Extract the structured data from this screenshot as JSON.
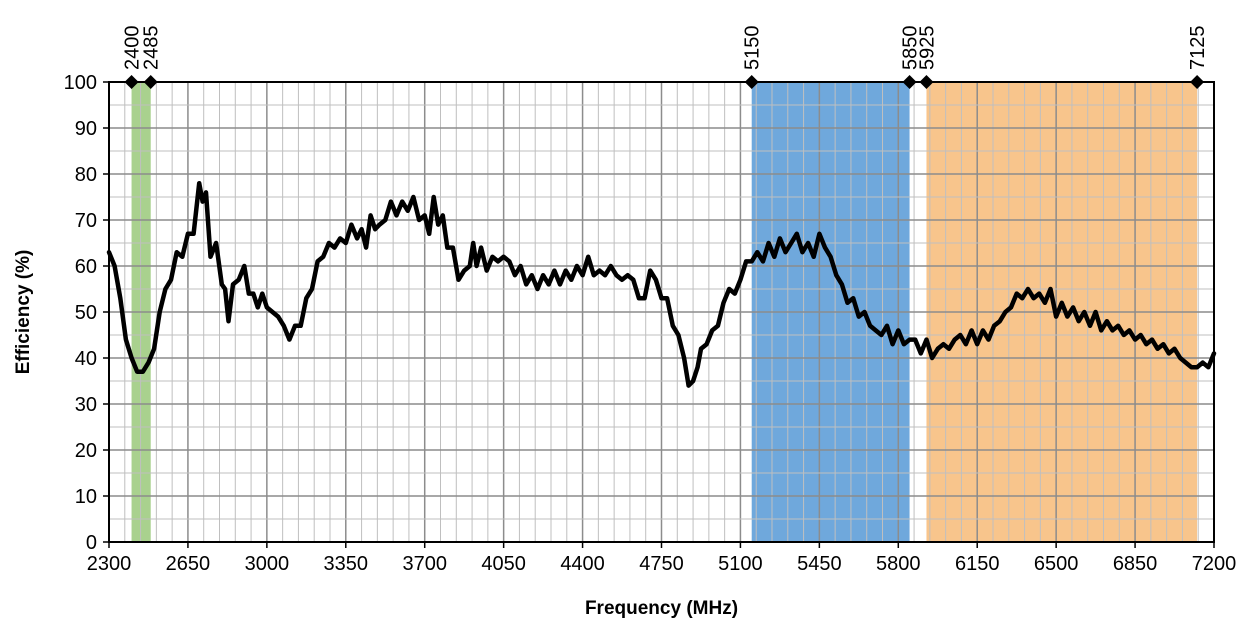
{
  "chart_data": {
    "type": "line",
    "title": "",
    "xlabel": "Frequency (MHz)",
    "ylabel": "Efficiency (%)",
    "xlim": [
      2300,
      7200
    ],
    "ylim": [
      0,
      100
    ],
    "x_ticks": [
      2300,
      2650,
      3000,
      3350,
      3700,
      4050,
      4400,
      4750,
      5100,
      5450,
      5800,
      6150,
      6500,
      6850,
      7200
    ],
    "y_ticks": [
      0,
      10,
      20,
      30,
      40,
      50,
      60,
      70,
      80,
      90,
      100
    ],
    "grid": true,
    "bands": [
      {
        "start": 2400,
        "end": 2485,
        "color": "#a9d18e"
      },
      {
        "start": 5150,
        "end": 5850,
        "color": "#6fa8dc"
      },
      {
        "start": 5925,
        "end": 7125,
        "color": "#f8c58c"
      }
    ],
    "band_markers": [
      {
        "x": 2400,
        "label": "2400"
      },
      {
        "x": 2485,
        "label": "2485"
      },
      {
        "x": 5150,
        "label": "5150"
      },
      {
        "x": 5850,
        "label": "5850"
      },
      {
        "x": 5925,
        "label": "5925"
      },
      {
        "x": 7125,
        "label": "7125"
      }
    ],
    "series": [
      {
        "color": "#000000",
        "points": [
          [
            2300,
            63
          ],
          [
            2325,
            60
          ],
          [
            2350,
            53
          ],
          [
            2375,
            44
          ],
          [
            2400,
            40
          ],
          [
            2425,
            37
          ],
          [
            2450,
            37
          ],
          [
            2475,
            39
          ],
          [
            2500,
            42
          ],
          [
            2525,
            50
          ],
          [
            2550,
            55
          ],
          [
            2575,
            57
          ],
          [
            2600,
            63
          ],
          [
            2625,
            62
          ],
          [
            2650,
            67
          ],
          [
            2675,
            67
          ],
          [
            2700,
            78
          ],
          [
            2715,
            74
          ],
          [
            2730,
            76
          ],
          [
            2750,
            62
          ],
          [
            2775,
            65
          ],
          [
            2800,
            56
          ],
          [
            2815,
            55
          ],
          [
            2830,
            48
          ],
          [
            2850,
            56
          ],
          [
            2875,
            57
          ],
          [
            2900,
            60
          ],
          [
            2920,
            54
          ],
          [
            2940,
            54
          ],
          [
            2960,
            51
          ],
          [
            2980,
            54
          ],
          [
            3000,
            51
          ],
          [
            3025,
            50
          ],
          [
            3050,
            49
          ],
          [
            3075,
            47
          ],
          [
            3100,
            44
          ],
          [
            3125,
            47
          ],
          [
            3150,
            47
          ],
          [
            3175,
            53
          ],
          [
            3200,
            55
          ],
          [
            3225,
            61
          ],
          [
            3250,
            62
          ],
          [
            3275,
            65
          ],
          [
            3300,
            64
          ],
          [
            3325,
            66
          ],
          [
            3350,
            65
          ],
          [
            3375,
            69
          ],
          [
            3400,
            66
          ],
          [
            3420,
            68
          ],
          [
            3440,
            64
          ],
          [
            3460,
            71
          ],
          [
            3480,
            68
          ],
          [
            3500,
            69
          ],
          [
            3525,
            70
          ],
          [
            3550,
            74
          ],
          [
            3575,
            71
          ],
          [
            3600,
            74
          ],
          [
            3625,
            72
          ],
          [
            3650,
            75
          ],
          [
            3675,
            70
          ],
          [
            3700,
            71
          ],
          [
            3720,
            67
          ],
          [
            3740,
            75
          ],
          [
            3760,
            69
          ],
          [
            3780,
            71
          ],
          [
            3800,
            64
          ],
          [
            3825,
            64
          ],
          [
            3850,
            57
          ],
          [
            3875,
            59
          ],
          [
            3900,
            60
          ],
          [
            3915,
            65
          ],
          [
            3930,
            60
          ],
          [
            3950,
            64
          ],
          [
            3975,
            59
          ],
          [
            4000,
            62
          ],
          [
            4025,
            61
          ],
          [
            4050,
            62
          ],
          [
            4075,
            61
          ],
          [
            4100,
            58
          ],
          [
            4125,
            60
          ],
          [
            4150,
            56
          ],
          [
            4175,
            58
          ],
          [
            4200,
            55
          ],
          [
            4225,
            58
          ],
          [
            4250,
            56
          ],
          [
            4275,
            59
          ],
          [
            4300,
            56
          ],
          [
            4325,
            59
          ],
          [
            4350,
            57
          ],
          [
            4375,
            60
          ],
          [
            4400,
            58
          ],
          [
            4425,
            62
          ],
          [
            4450,
            58
          ],
          [
            4475,
            59
          ],
          [
            4500,
            58
          ],
          [
            4525,
            60
          ],
          [
            4550,
            58
          ],
          [
            4575,
            57
          ],
          [
            4600,
            58
          ],
          [
            4625,
            57
          ],
          [
            4650,
            53
          ],
          [
            4675,
            53
          ],
          [
            4700,
            59
          ],
          [
            4725,
            57
          ],
          [
            4750,
            53
          ],
          [
            4775,
            53
          ],
          [
            4800,
            47
          ],
          [
            4825,
            45
          ],
          [
            4850,
            40
          ],
          [
            4870,
            34
          ],
          [
            4890,
            35
          ],
          [
            4910,
            38
          ],
          [
            4925,
            42
          ],
          [
            4950,
            43
          ],
          [
            4975,
            46
          ],
          [
            5000,
            47
          ],
          [
            5025,
            52
          ],
          [
            5050,
            55
          ],
          [
            5075,
            54
          ],
          [
            5100,
            57
          ],
          [
            5125,
            61
          ],
          [
            5150,
            61
          ],
          [
            5175,
            63
          ],
          [
            5200,
            61
          ],
          [
            5225,
            65
          ],
          [
            5250,
            62
          ],
          [
            5275,
            66
          ],
          [
            5300,
            63
          ],
          [
            5325,
            65
          ],
          [
            5350,
            67
          ],
          [
            5375,
            63
          ],
          [
            5400,
            65
          ],
          [
            5425,
            62
          ],
          [
            5450,
            67
          ],
          [
            5475,
            64
          ],
          [
            5500,
            62
          ],
          [
            5525,
            58
          ],
          [
            5550,
            56
          ],
          [
            5575,
            52
          ],
          [
            5600,
            53
          ],
          [
            5625,
            49
          ],
          [
            5650,
            50
          ],
          [
            5675,
            47
          ],
          [
            5700,
            46
          ],
          [
            5725,
            45
          ],
          [
            5750,
            47
          ],
          [
            5775,
            43
          ],
          [
            5800,
            46
          ],
          [
            5825,
            43
          ],
          [
            5850,
            44
          ],
          [
            5875,
            44
          ],
          [
            5900,
            41
          ],
          [
            5925,
            44
          ],
          [
            5950,
            40
          ],
          [
            5975,
            42
          ],
          [
            6000,
            43
          ],
          [
            6025,
            42
          ],
          [
            6050,
            44
          ],
          [
            6075,
            45
          ],
          [
            6100,
            43
          ],
          [
            6125,
            46
          ],
          [
            6150,
            43
          ],
          [
            6175,
            46
          ],
          [
            6200,
            44
          ],
          [
            6225,
            47
          ],
          [
            6250,
            48
          ],
          [
            6275,
            50
          ],
          [
            6300,
            51
          ],
          [
            6325,
            54
          ],
          [
            6350,
            53
          ],
          [
            6375,
            55
          ],
          [
            6400,
            53
          ],
          [
            6425,
            54
          ],
          [
            6450,
            52
          ],
          [
            6475,
            55
          ],
          [
            6500,
            49
          ],
          [
            6525,
            52
          ],
          [
            6550,
            49
          ],
          [
            6575,
            51
          ],
          [
            6600,
            48
          ],
          [
            6625,
            50
          ],
          [
            6650,
            47
          ],
          [
            6675,
            50
          ],
          [
            6700,
            46
          ],
          [
            6725,
            48
          ],
          [
            6750,
            46
          ],
          [
            6775,
            47
          ],
          [
            6800,
            45
          ],
          [
            6825,
            46
          ],
          [
            6850,
            44
          ],
          [
            6875,
            45
          ],
          [
            6900,
            43
          ],
          [
            6925,
            44
          ],
          [
            6950,
            42
          ],
          [
            6975,
            43
          ],
          [
            7000,
            41
          ],
          [
            7025,
            42
          ],
          [
            7050,
            40
          ],
          [
            7075,
            39
          ],
          [
            7100,
            38
          ],
          [
            7125,
            38
          ],
          [
            7150,
            39
          ],
          [
            7175,
            38
          ],
          [
            7200,
            41
          ]
        ]
      }
    ]
  }
}
